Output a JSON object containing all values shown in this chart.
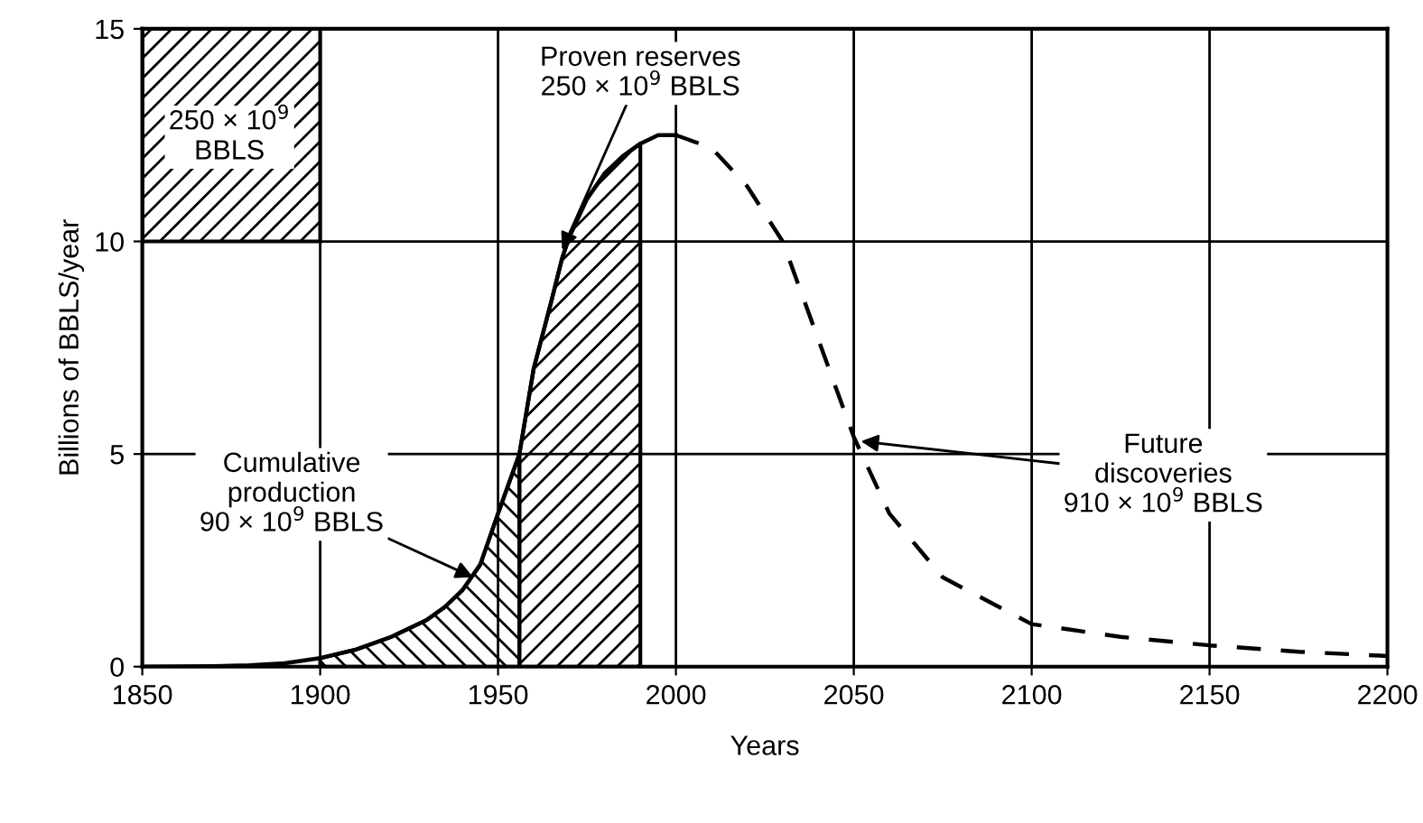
{
  "chart_data": {
    "type": "line",
    "xlabel": "Years",
    "ylabel": "Billions of BBLS/year",
    "xlim": [
      1850,
      2200
    ],
    "ylim": [
      0,
      15
    ],
    "xticks": [
      1850,
      1900,
      1950,
      2000,
      2050,
      2100,
      2150,
      2200
    ],
    "yticks": [
      0,
      5,
      10,
      15
    ],
    "grid": true,
    "series": [
      {
        "line_style": "solid",
        "color": "#000000",
        "x": [
          1850,
          1870,
          1880,
          1890,
          1900,
          1910,
          1920,
          1930,
          1935,
          1940,
          1945,
          1950,
          1953,
          1956,
          1960,
          1965,
          1968,
          1970,
          1975,
          1980,
          1985,
          1990,
          1995,
          2000
        ],
        "values": [
          0,
          0.01,
          0.03,
          0.08,
          0.2,
          0.4,
          0.7,
          1.1,
          1.4,
          1.8,
          2.4,
          3.6,
          4.3,
          5.0,
          7.0,
          8.6,
          9.6,
          10.1,
          11.0,
          11.6,
          12.0,
          12.3,
          12.5,
          12.5
        ]
      },
      {
        "line_style": "dashed",
        "color": "#000000",
        "x": [
          2000,
          2010,
          2020,
          2030,
          2040,
          2050,
          2060,
          2075,
          2100,
          2125,
          2150,
          2175,
          2200
        ],
        "values": [
          12.5,
          12.2,
          11.3,
          10.0,
          7.7,
          5.4,
          3.6,
          2.1,
          1.0,
          0.7,
          0.5,
          0.35,
          0.25
        ]
      },
      {
        "type": "area",
        "color": "#000000",
        "x": [
          1900,
          1910,
          1920,
          1930,
          1935,
          1940,
          1945,
          1950,
          1953,
          1956
        ],
        "values": [
          0.2,
          0.4,
          0.7,
          1.1,
          1.4,
          1.8,
          2.4,
          3.6,
          4.3,
          5.0
        ]
      },
      {
        "type": "area",
        "color": "#000000",
        "x": [
          1956,
          1960,
          1965,
          1968,
          1970,
          1975,
          1980,
          1985,
          1990
        ],
        "values": [
          5.0,
          7.0,
          8.6,
          9.6,
          10.1,
          11.0,
          11.6,
          12.0,
          12.3
        ]
      }
    ],
    "annotations": [
      "250 × 10$^{9}$\nBBLS",
      {
        "text": "Proven reserves\n250 × 10$^{9}$ BBLS",
        "x": 1968,
        "y": 9.8
      },
      {
        "text": "Cumulative\nproduction\n90 × 10$^{9}$ BBLS",
        "x": 1943,
        "y": 2.1
      },
      {
        "text": "Future\ndiscoveries\n910 × 10$^{9}$ BBLS",
        "x": 2052,
        "y": 5.3
      }
    ]
  }
}
